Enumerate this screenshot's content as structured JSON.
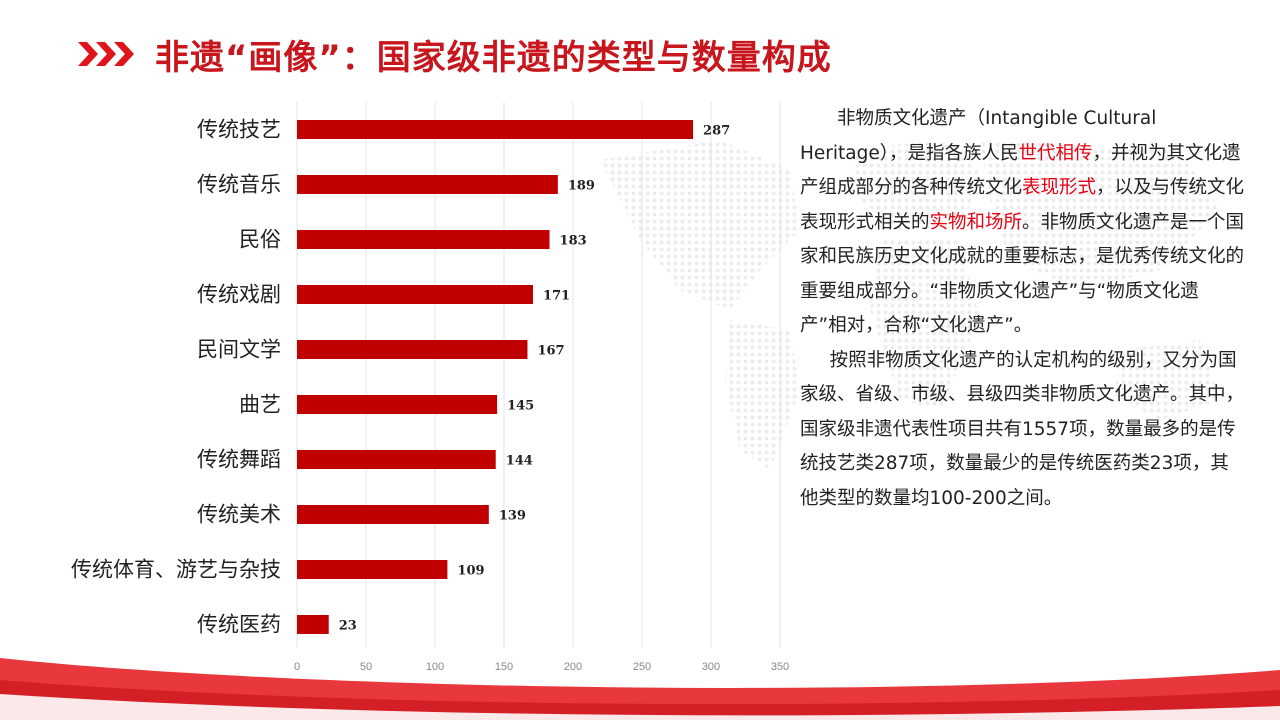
{
  "title": "非遗“画像”：国家级非遗的类型与数量构成",
  "colors": {
    "accent": "#c8161d",
    "bar": "#c00000",
    "highlight": "#e60012"
  },
  "chart_data": {
    "type": "bar",
    "orientation": "horizontal",
    "categories": [
      "传统技艺",
      "传统音乐",
      "民俗",
      "传统戏剧",
      "民间文学",
      "曲艺",
      "传统舞蹈",
      "传统美术",
      "传统体育、游艺与杂技",
      "传统医药"
    ],
    "values": [
      287,
      189,
      183,
      171,
      167,
      145,
      144,
      139,
      109,
      23
    ],
    "xlim": [
      0,
      350
    ],
    "xticks": [
      0,
      50,
      100,
      150,
      200,
      250,
      300,
      350
    ],
    "grid": true,
    "title": "",
    "xlabel": "",
    "ylabel": ""
  },
  "description": {
    "p1_a": "非物质文化遗产（Intangible Cultural Heritage），是指各族人民",
    "p1_h1": "世代相传",
    "p1_b": "，并视为其文化遗产组成部分的各种传统文化",
    "p1_h2": "表现形式",
    "p1_c": "，以及与传统文化表现形式相关的",
    "p1_h3": "实物和场所",
    "p1_d": "。非物质文化遗产是一个国家和民族历史文化成就的重要标志，是优秀传统文化的重要组成部分。“非物质文化遗产”与“物质文化遗产”相对，合称“文化遗产”。",
    "p2": "按照非物质文化遗产的认定机构的级别，又分为国家级、省级、市级、县级四类非物质文化遗产。其中，国家级非遗代表性项目共有1557项，数量最多的是传统技艺类287项，数量最少的是传统医药类23项，其他类型的数量均100-200之间。"
  }
}
